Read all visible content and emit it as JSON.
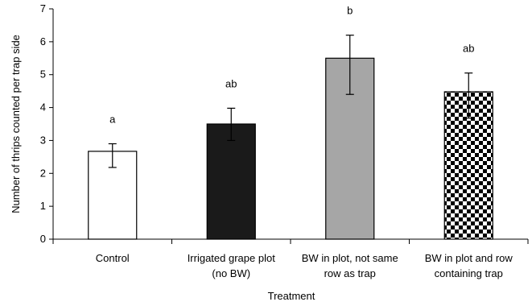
{
  "chart_data": {
    "type": "bar",
    "categories": [
      [
        "Control"
      ],
      [
        "Irrigated grape plot",
        "(no BW)"
      ],
      [
        "BW in plot, not same",
        "row as trap"
      ],
      [
        "BW in plot and row",
        "containing trap"
      ]
    ],
    "values": [
      2.67,
      3.5,
      5.5,
      4.48
    ],
    "error_low": [
      2.18,
      3.0,
      4.4,
      3.68
    ],
    "error_high": [
      2.9,
      3.98,
      6.2,
      5.05
    ],
    "significance_letters": [
      "a",
      "ab",
      "b",
      "ab"
    ],
    "bar_styles": [
      {
        "fill": "#ffffff",
        "pattern": "none"
      },
      {
        "fill": "#1a1a1a",
        "pattern": "none"
      },
      {
        "fill": "#a6a6a6",
        "pattern": "none"
      },
      {
        "fill": "#ffffff",
        "pattern": "checker"
      }
    ],
    "title": "",
    "xlabel": "Treatment",
    "ylabel": "Number of thrips counted per trap side",
    "ylim": [
      0,
      7
    ],
    "yticks": [
      0,
      1,
      2,
      3,
      4,
      5,
      6,
      7
    ],
    "grid": false,
    "legend": "none"
  }
}
